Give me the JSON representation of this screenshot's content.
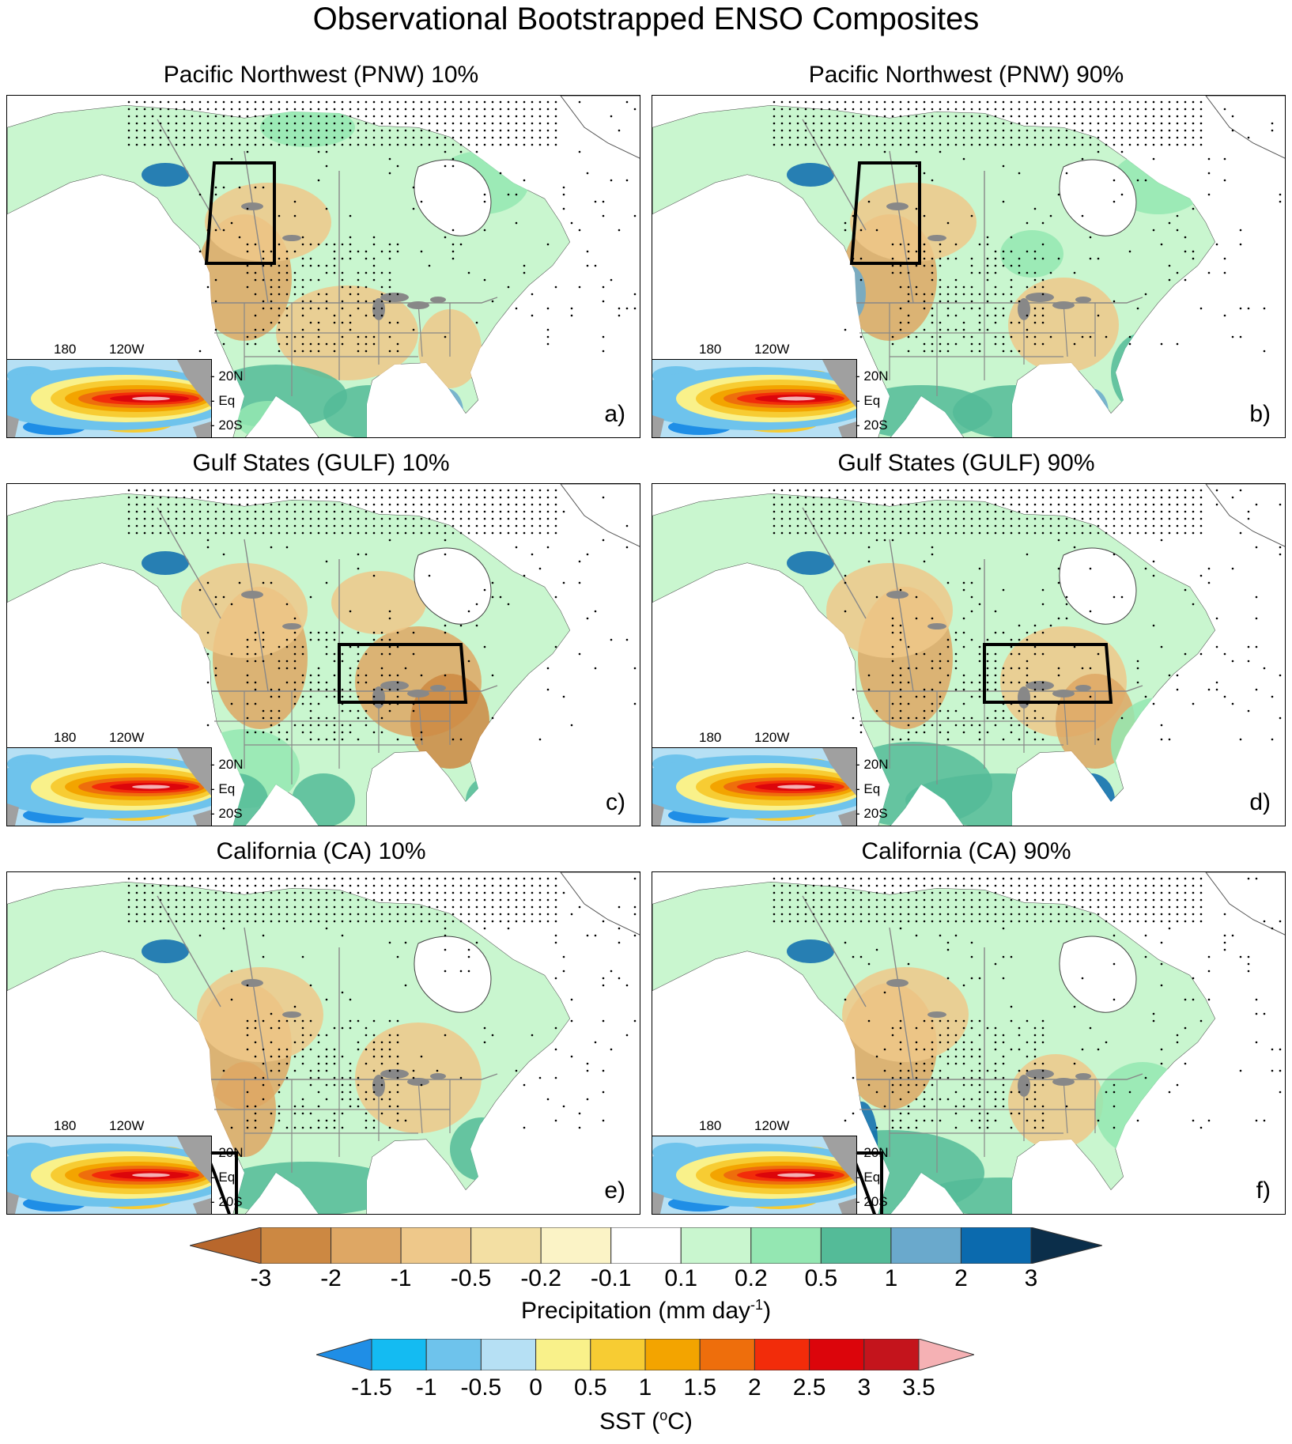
{
  "title": "Observational Bootstrapped ENSO Composites",
  "panels": [
    {
      "title": "Pacific Northwest (PNW) 10%",
      "letter": "a)",
      "region": "pnw"
    },
    {
      "title": "Pacific Northwest (PNW) 90%",
      "letter": "b)",
      "region": "pnw"
    },
    {
      "title": "Gulf States (GULF) 10%",
      "letter": "c)",
      "region": "gulf"
    },
    {
      "title": "Gulf States (GULF) 90%",
      "letter": "d)",
      "region": "gulf"
    },
    {
      "title": "California (CA) 10%",
      "letter": "e)",
      "region": "ca"
    },
    {
      "title": "California (CA) 90%",
      "letter": "f)",
      "region": "ca"
    }
  ],
  "inset_labels": {
    "lon": [
      "180",
      "120W"
    ],
    "lat": [
      "20N",
      "Eq",
      "20S"
    ]
  },
  "precip_colorbar": {
    "label_main": "Precipitation (mm day",
    "label_sup": "-1",
    "label_end": ")",
    "ticks": [
      "-3",
      "-2",
      "-1",
      "-0.5",
      "-0.2",
      "-0.1",
      "0.1",
      "0.2",
      "0.5",
      "1",
      "2",
      "3"
    ],
    "colors": [
      "#b8672c",
      "#cc8842",
      "#dea764",
      "#eec88a",
      "#f3dfa3",
      "#fbf3c6",
      "#ffffff",
      "#c9f6cf",
      "#94e7b2",
      "#54bb98",
      "#6aa9cc",
      "#0b6aae",
      "#0b2e4a"
    ]
  },
  "sst_colorbar": {
    "label_main": "SST (",
    "label_sup": "o",
    "label_end": "C)",
    "ticks": [
      "-1.5",
      "-1",
      "-0.5",
      "0",
      "0.5",
      "1",
      "1.5",
      "2",
      "2.5",
      "3",
      "3.5"
    ],
    "colors": [
      "#1f8ee6",
      "#14bbf2",
      "#6ec3ec",
      "#b6e0f4",
      "#f9f18a",
      "#f7cc33",
      "#f3a400",
      "#ee6e0c",
      "#f22c0a",
      "#dc050b",
      "#c4141c",
      "#f5b1b4"
    ]
  }
}
